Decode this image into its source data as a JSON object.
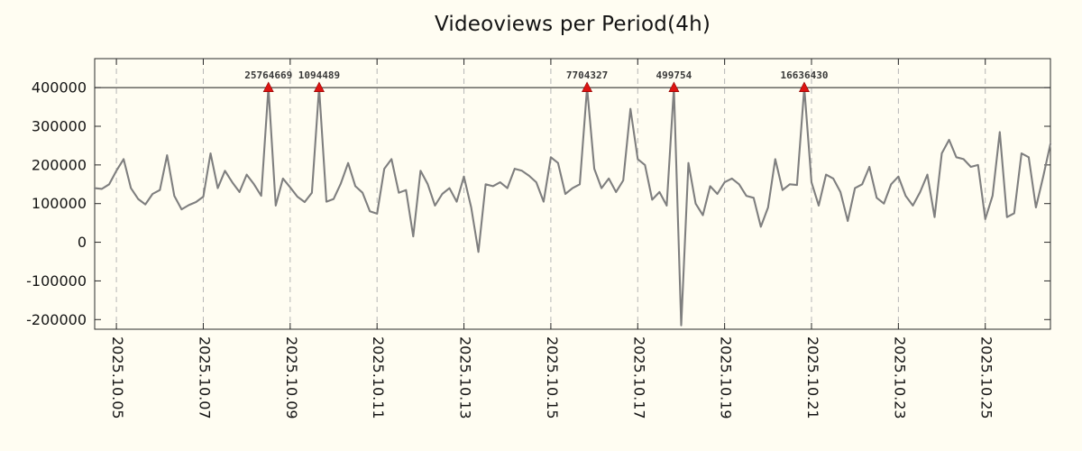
{
  "chart_data": {
    "type": "line",
    "title": "Videoviews per Period(4h)",
    "xlabel": "",
    "ylabel": "",
    "period_hours": 4,
    "grid": "vertical-dashed",
    "legend": null,
    "x_tick_labels": [
      "2025.10.05",
      "2025.10.07",
      "2025.10.09",
      "2025.10.11",
      "2025.10.13",
      "2025.10.15",
      "2025.10.17",
      "2025.10.19",
      "2025.10.21",
      "2025.10.23",
      "2025.10.25"
    ],
    "x_tick_indices": [
      3,
      15,
      27,
      39,
      51,
      63,
      75,
      87,
      99,
      111,
      123
    ],
    "y_tick_values": [
      -200000,
      -100000,
      0,
      100000,
      200000,
      300000,
      400000
    ],
    "y_tick_labels": [
      "-200000",
      "-100000",
      "0",
      "100000",
      "200000",
      "300000",
      "400000"
    ],
    "ylim": [
      -225000,
      475000
    ],
    "clip_value": 400000,
    "values": [
      140000,
      138000,
      150000,
      185000,
      215000,
      140000,
      112000,
      98000,
      125000,
      135000,
      225000,
      120000,
      85000,
      96000,
      104000,
      118000,
      230000,
      140000,
      185000,
      155000,
      130000,
      175000,
      150000,
      120000,
      25764669,
      95000,
      165000,
      142000,
      118000,
      104000,
      128000,
      1094489,
      105000,
      112000,
      152000,
      205000,
      145000,
      128000,
      80000,
      74000,
      190000,
      215000,
      128000,
      135000,
      15000,
      185000,
      150000,
      95000,
      125000,
      140000,
      105000,
      170000,
      90000,
      -25000,
      150000,
      145000,
      155000,
      140000,
      190000,
      185000,
      172000,
      155000,
      105000,
      220000,
      205000,
      125000,
      140000,
      150000,
      7704327,
      190000,
      140000,
      165000,
      130000,
      160000,
      345000,
      215000,
      200000,
      110000,
      130000,
      95000,
      499754,
      -215000,
      205000,
      100000,
      70000,
      145000,
      125000,
      155000,
      165000,
      150000,
      120000,
      115000,
      40000,
      90000,
      215000,
      135000,
      150000,
      148000,
      16636430,
      155000,
      95000,
      175000,
      165000,
      130000,
      55000,
      140000,
      150000,
      195000,
      115000,
      100000,
      150000,
      170000,
      120000,
      95000,
      130000,
      175000,
      65000,
      230000,
      265000,
      220000,
      215000,
      195000,
      200000,
      60000,
      120000,
      285000,
      65000,
      75000,
      230000,
      220000,
      90000,
      170000,
      255000
    ],
    "peak_annotations": [
      {
        "index": 24,
        "label": "25764669",
        "value": 25764669
      },
      {
        "index": 31,
        "label": "1094489",
        "value": 1094489
      },
      {
        "index": 68,
        "label": "7704327",
        "value": 7704327
      },
      {
        "index": 80,
        "label": "499754",
        "value": 499754
      },
      {
        "index": 98,
        "label": "16636430",
        "value": 16636430
      }
    ]
  },
  "colors": {
    "background": "#fffdf2",
    "series_line": "#7f7f7f",
    "peak_marker": "#dd1412",
    "peak_marker_edge": "#8b0000",
    "grid_line": "#b5b5b5",
    "axis": "#2a2a2a",
    "tick_text": "#141414",
    "annotation_text": "#3a3a3a",
    "clip_line": "#1a1a1a"
  }
}
